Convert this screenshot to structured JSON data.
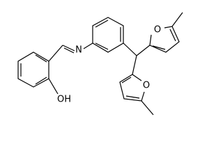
{
  "atoms": [
    {
      "label": "N"
    },
    {
      "label": "OH"
    },
    {
      "label": "O"
    },
    {
      "label": "O"
    }
  ]
}
